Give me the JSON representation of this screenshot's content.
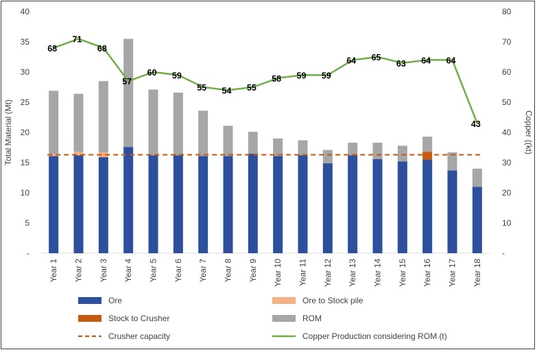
{
  "chart_data": {
    "type": "bar",
    "stacked": true,
    "categories": [
      "Year 1",
      "Year 2",
      "Year 3",
      "Year 4",
      "Year 5",
      "Year 6",
      "Year 7",
      "Year 8",
      "Year 9",
      "Year 10",
      "Year 11",
      "Year 12",
      "Year 13",
      "Year 14",
      "Year 15",
      "Year 16",
      "Year 17",
      "Year 18"
    ],
    "ylabel": "Total Material (Mt)",
    "y2label": "Copper ((kt)",
    "ylim": [
      0,
      40
    ],
    "y2lim": [
      0,
      80
    ],
    "yticks": [
      "-",
      "5",
      "10",
      "15",
      "20",
      "25",
      "30",
      "35",
      "40"
    ],
    "y2ticks": [
      "-",
      "10",
      "20",
      "30",
      "40",
      "50",
      "60",
      "70",
      "80"
    ],
    "grid": false,
    "legend_position": "bottom",
    "series": [
      {
        "name": "Ore",
        "kind": "bar",
        "color": "#2E4F9C",
        "values": [
          16.1,
          16.2,
          15.9,
          17.6,
          16.2,
          16.2,
          16.1,
          16.1,
          16.5,
          16.1,
          16.2,
          14.9,
          16.2,
          15.6,
          15.2,
          15.5,
          13.7,
          11.0
        ]
      },
      {
        "name": "Ore to Stock pile",
        "kind": "bar",
        "color": "#F4B183",
        "values": [
          0.3,
          0.6,
          0.8,
          0,
          0,
          0,
          0,
          0,
          0,
          0,
          0,
          0,
          0,
          0,
          0,
          0,
          0,
          0
        ]
      },
      {
        "name": "Stock to Crusher",
        "kind": "bar",
        "color": "#C55A11",
        "values": [
          0,
          0,
          0,
          0,
          0,
          0,
          0,
          0,
          0,
          0,
          0,
          0,
          0,
          0,
          0,
          1.3,
          0,
          0
        ]
      },
      {
        "name": "ROM",
        "kind": "bar",
        "color": "#A6A6A6",
        "values": [
          10.5,
          9.6,
          11.8,
          17.9,
          10.9,
          10.4,
          7.5,
          5.0,
          3.6,
          2.9,
          2.5,
          2.2,
          2.1,
          2.7,
          2.6,
          2.5,
          3.0,
          3.0
        ]
      },
      {
        "name": "Crusher capacity",
        "kind": "dashed-line",
        "color": "#C55A11",
        "axis": "left",
        "values": [
          16.3,
          16.3,
          16.3,
          16.3,
          16.3,
          16.3,
          16.3,
          16.3,
          16.3,
          16.3,
          16.3,
          16.3,
          16.3,
          16.3,
          16.3,
          16.3,
          16.3,
          16.3
        ]
      },
      {
        "name": "Copper Production considering ROM (t)",
        "kind": "line",
        "color": "#70AD47",
        "axis": "right",
        "values": [
          68,
          71,
          68,
          57,
          60,
          59,
          55,
          54,
          55,
          58,
          59,
          59,
          64,
          65,
          63,
          64,
          64,
          43
        ]
      }
    ]
  }
}
